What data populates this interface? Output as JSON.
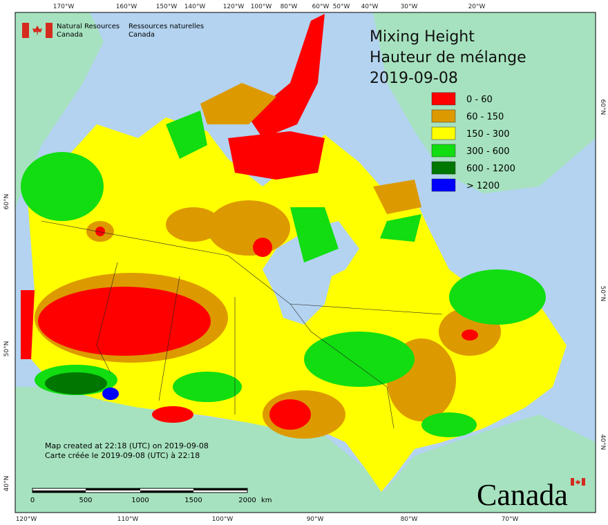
{
  "title": [
    "Mixing Height",
    "Hauteur de mélange",
    "2019-09-08"
  ],
  "agency": {
    "en": [
      "Natural Resources",
      "Canada"
    ],
    "fr": [
      "Ressources naturelles",
      "Canada"
    ]
  },
  "legend": [
    {
      "label": "0 - 60",
      "color": "#ff0000"
    },
    {
      "label": "60 - 150",
      "color": "#dd9a00"
    },
    {
      "label": "150 - 300",
      "color": "#ffff00"
    },
    {
      "label": "300 - 600",
      "color": "#11dd11"
    },
    {
      "label": "600 - 1200",
      "color": "#007700"
    },
    {
      "label": "> 1200",
      "color": "#0000ff"
    }
  ],
  "credits": [
    "Map created at 22:18 (UTC) on 2019-09-08",
    "Carte créée le 2019-09-08 (UTC) à 22:18"
  ],
  "scale_bar": {
    "ticks": [
      0,
      500,
      1000,
      1500,
      2000
    ],
    "unit": "km"
  },
  "graticule": {
    "top": [
      "170°W",
      "160°W",
      "150°W",
      "140°W",
      "120°W",
      "100°W",
      "80°W",
      "60°W",
      "50°W",
      "40°W",
      "30°W",
      "20°W"
    ],
    "bottom": [
      "120°W",
      "110°W",
      "100°W",
      "90°W",
      "80°W",
      "70°W"
    ],
    "left": [
      "60°N",
      "50°N",
      "40°N"
    ],
    "right": [
      "60°N",
      "50°N",
      "40°N"
    ]
  },
  "wordmark": "Canada"
}
